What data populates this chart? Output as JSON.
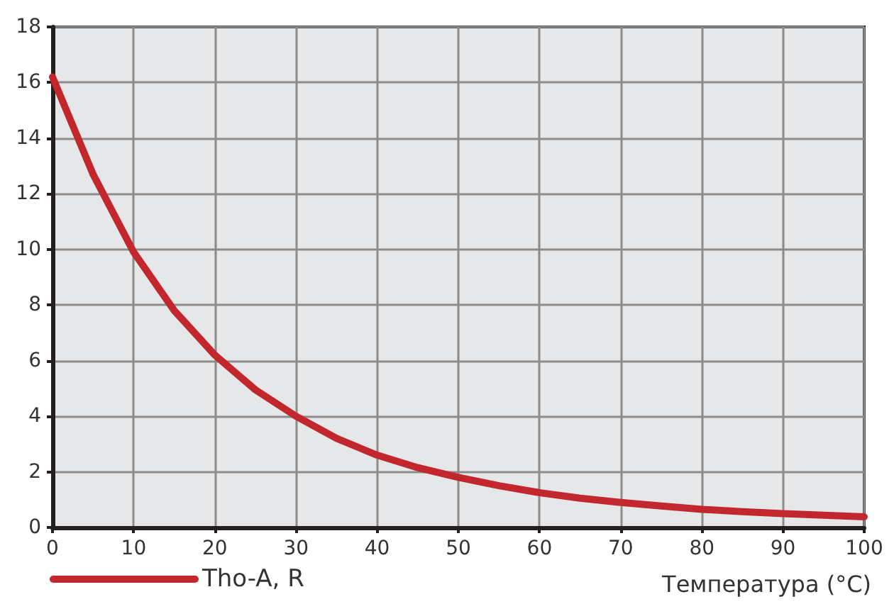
{
  "chart_data": {
    "type": "line",
    "xlabel": "Температура (°C)",
    "x": [
      0,
      5,
      10,
      15,
      20,
      25,
      30,
      35,
      40,
      45,
      50,
      55,
      60,
      65,
      70,
      75,
      80,
      85,
      90,
      95,
      100
    ],
    "series": [
      {
        "name": "Tho-A, R",
        "color": "#c1272d",
        "values": [
          16.2,
          12.7,
          9.9,
          7.8,
          6.2,
          4.95,
          4.0,
          3.2,
          2.6,
          2.15,
          1.8,
          1.5,
          1.25,
          1.05,
          0.9,
          0.77,
          0.65,
          0.57,
          0.5,
          0.44,
          0.38
        ]
      }
    ],
    "xlim": [
      0,
      100
    ],
    "xticks": [
      0,
      10,
      20,
      30,
      40,
      50,
      60,
      70,
      80,
      90,
      100
    ],
    "ylim": [
      0,
      18
    ],
    "yticks": [
      0,
      2,
      4,
      6,
      8,
      10,
      12,
      14,
      16,
      18
    ],
    "grid": true,
    "legend": "bottom left",
    "marker": "none",
    "line_style": "solid"
  }
}
